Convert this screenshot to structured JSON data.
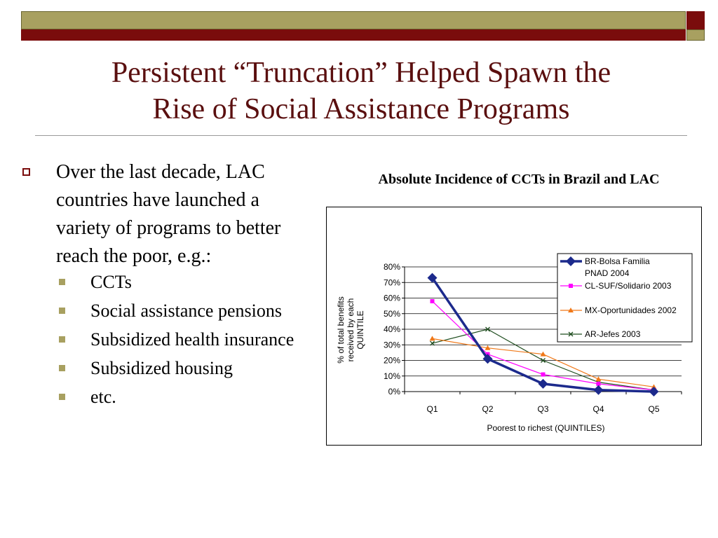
{
  "slide": {
    "title_line1": "Persistent “Truncation” Helped Spawn the",
    "title_line2": "Rise of Social Assistance Programs",
    "bullet_main": "Over the last decade, LAC countries have launched a variety of programs to better reach the poor, e.g.:",
    "sub_bullets": [
      "CCTs",
      "Social assistance pensions",
      "Subsidized health insurance",
      "Subsidized housing",
      "etc."
    ]
  },
  "colors": {
    "maroon": "#7a0c0c",
    "olive": "#a8a060",
    "title_text": "#5a0f0f"
  },
  "chart_data": {
    "type": "line",
    "title": "Absolute Incidence of CCTs in Brazil and LAC",
    "xlabel": "Poorest to richest (QUINTILES)",
    "ylabel_lines": [
      "% of total benefits",
      "received by each",
      "QUINTILE"
    ],
    "categories": [
      "Q1",
      "Q2",
      "Q3",
      "Q4",
      "Q5"
    ],
    "ylim": [
      0,
      80
    ],
    "yticks": [
      "0%",
      "10%",
      "20%",
      "30%",
      "40%",
      "50%",
      "60%",
      "70%",
      "80%"
    ],
    "grid": true,
    "legend_position": "top-right",
    "series": [
      {
        "name_lines": [
          "BR-Bolsa Familia",
          "PNAD 2004"
        ],
        "values": [
          73,
          21,
          5,
          1,
          0
        ],
        "color": "#1c2a8c",
        "marker": "diamond"
      },
      {
        "name_lines": [
          "CL-SUF/Solidario  2003"
        ],
        "values": [
          58,
          24,
          11,
          5,
          1
        ],
        "color": "#ff00ff",
        "marker": "square"
      },
      {
        "name_lines": [
          "MX-Oportunidades 2002"
        ],
        "values": [
          34,
          28,
          24,
          8,
          3
        ],
        "color": "#f07818",
        "marker": "triangle"
      },
      {
        "name_lines": [
          "AR-Jefes 2003"
        ],
        "values": [
          31,
          40,
          20,
          6,
          1
        ],
        "color": "#1e4d1e",
        "marker": "x"
      }
    ]
  }
}
